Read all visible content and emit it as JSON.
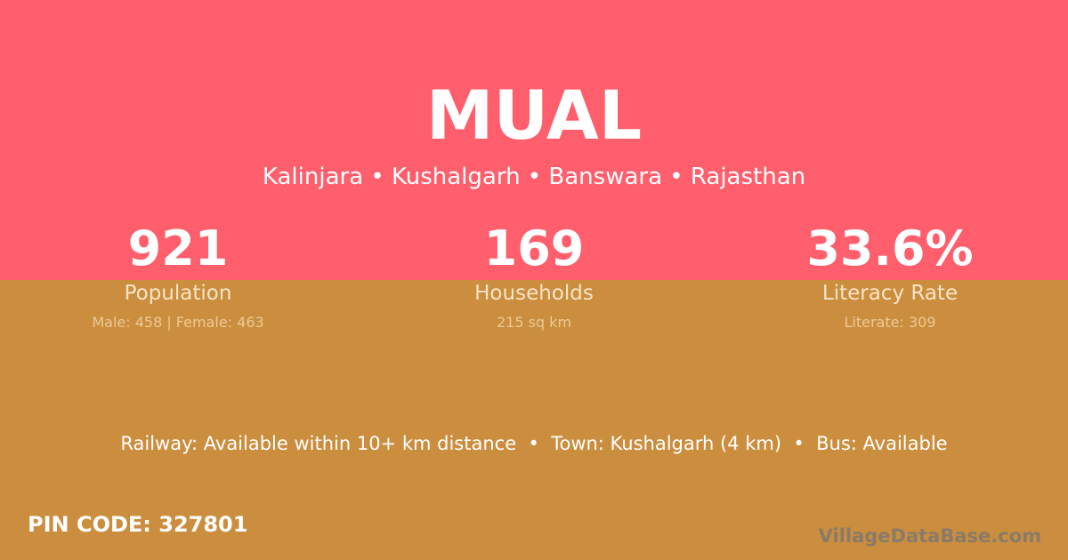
{
  "colors": {
    "top_background": "#ff5e6c",
    "bottom_background": "#cb8e3e"
  },
  "village": {
    "name": "MUAL",
    "location": "Kalinjara • Kushalgarh • Banswara • Rajasthan"
  },
  "stats": [
    {
      "value": "921",
      "label": "Population",
      "detail": "Male: 458 | Female: 463"
    },
    {
      "value": "169",
      "label": "Households",
      "detail": "215 sq km"
    },
    {
      "value": "33.6%",
      "label": "Literacy Rate",
      "detail": "Literate: 309"
    }
  ],
  "facilities": "Railway: Available within 10+ km distance  •  Town: Kushalgarh (4 km)  •  Bus: Available",
  "pin_code": "PIN CODE: 327801",
  "brand": "VillageDataBase.com"
}
